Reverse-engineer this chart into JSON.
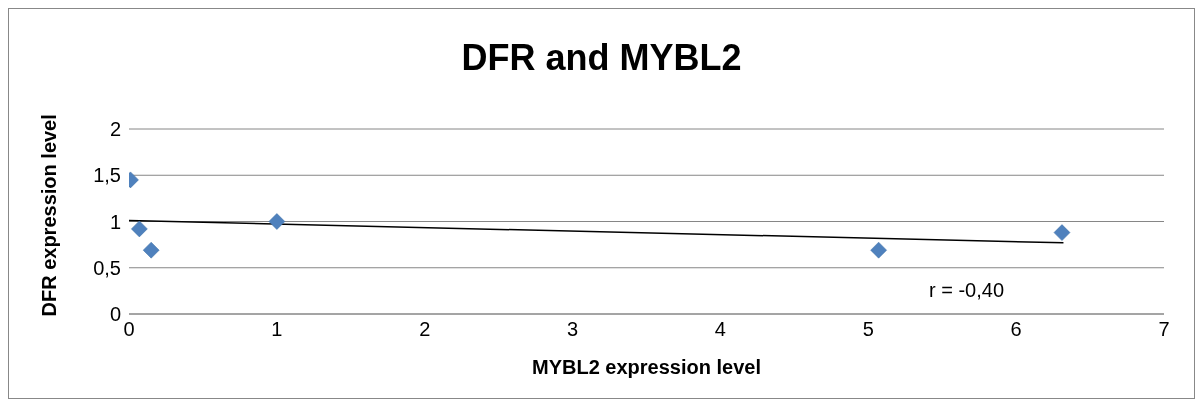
{
  "chart_data": {
    "type": "scatter",
    "title": "DFR and MYBL2",
    "xlabel": "MYBL2 expression level",
    "ylabel": "DFR expression level",
    "series": [
      {
        "color": "#4f81bd",
        "marker": "diamond",
        "x": [
          0.01,
          0.07,
          0.15,
          1.0,
          5.07,
          6.31
        ],
        "values": [
          1.45,
          0.92,
          0.69,
          1.0,
          0.69,
          0.88
        ]
      },
      {
        "type": "line",
        "color": "#000000",
        "marker": "none",
        "line_style": "solid",
        "x": [
          0,
          6.32
        ],
        "values": [
          1.01,
          0.77
        ]
      }
    ],
    "xlim": [
      0,
      7
    ],
    "xticks": [
      0,
      1,
      2,
      3,
      4,
      5,
      6,
      7
    ],
    "ylim": [
      0,
      2
    ],
    "yticks": [
      0,
      {
        "value": 0.5,
        "label": "0,5"
      },
      1,
      {
        "value": 1.5,
        "label": "1,5"
      },
      2
    ],
    "grid": "y",
    "annotations": [
      "r = -0,40"
    ]
  }
}
